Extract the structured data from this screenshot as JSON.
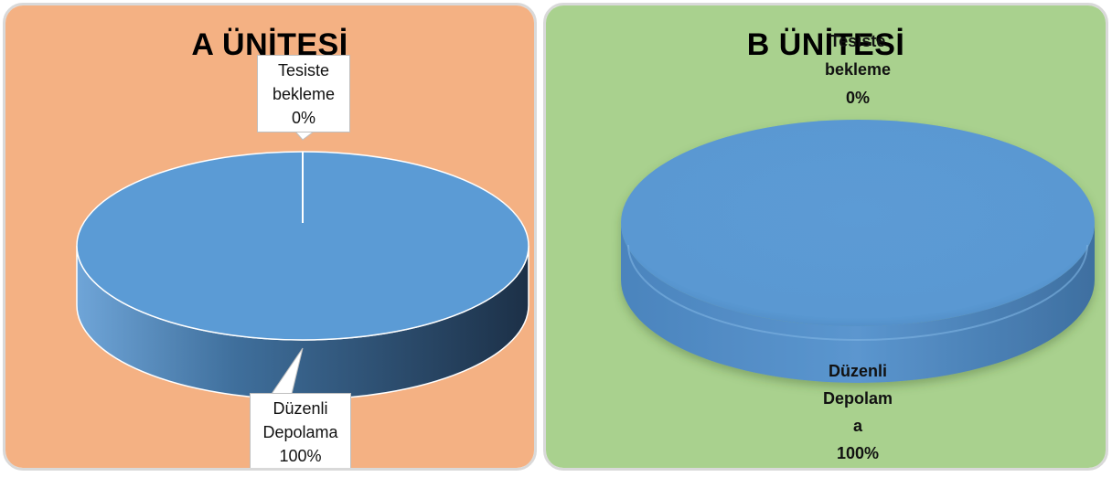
{
  "colors": {
    "panel_a_background": "#f4b183",
    "panel_b_background": "#a9d18e",
    "slice_fill": "#5b9bd5",
    "slice_side_light": "#4f86bb",
    "slice_side_dark": "#1f3a55"
  },
  "chart_data": [
    {
      "type": "pie",
      "title": "A ÜNİTESİ",
      "style": "3d",
      "categories": [
        "Tesiste bekleme",
        "Düzenli Depolama"
      ],
      "values": [
        0,
        100
      ],
      "labels": [
        {
          "lines": [
            "Tesiste",
            "bekleme",
            "0%"
          ]
        },
        {
          "lines": [
            "Düzenli",
            "Depolama",
            "100%"
          ]
        }
      ]
    },
    {
      "type": "pie",
      "title": "B ÜNİTESİ",
      "style": "3d",
      "categories": [
        "Tesiste bekleme",
        "Düzenli Depolama"
      ],
      "values": [
        0,
        100
      ],
      "labels": [
        {
          "lines": [
            "Tesiste",
            "bekleme",
            "0%"
          ]
        },
        {
          "lines": [
            "Düzenli",
            "Depolam",
            "a",
            "100%"
          ]
        }
      ]
    }
  ]
}
